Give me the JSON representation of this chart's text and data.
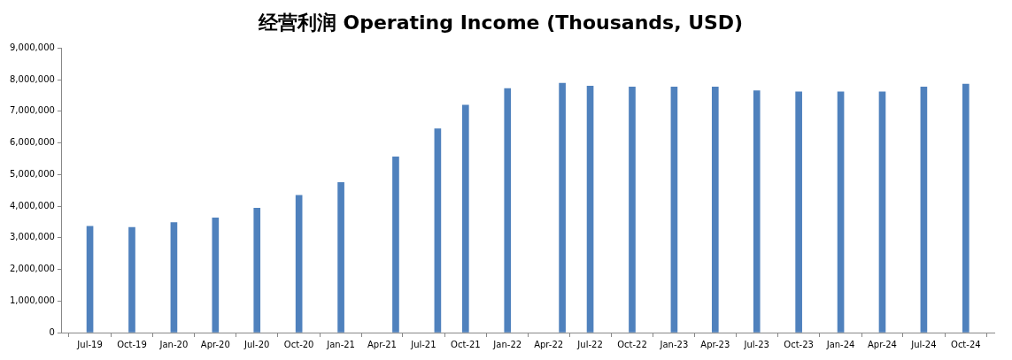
{
  "chart_data": {
    "type": "bar",
    "title": "经营利润 Operating Income (Thousands, USD)",
    "x": [
      "2019-07",
      "2019-10",
      "2020-01",
      "2020-04",
      "2020-07",
      "2020-10",
      "2021-01",
      "2021-05",
      "2021-08",
      "2021-10",
      "2022-01",
      "2022-05",
      "2022-07",
      "2022-10",
      "2023-01",
      "2023-04",
      "2023-07",
      "2023-10",
      "2024-01",
      "2024-04",
      "2024-07",
      "2024-10"
    ],
    "values": [
      3360000,
      3330000,
      3480000,
      3630000,
      3940000,
      4340000,
      4750000,
      5560000,
      6450000,
      7200000,
      7720000,
      7890000,
      7800000,
      7770000,
      7770000,
      7770000,
      7650000,
      7620000,
      7620000,
      7620000,
      7770000,
      7860000
    ],
    "color": "#4f81bd",
    "xlim": [
      "2019-06-16",
      "2024-10-17"
    ],
    "xticks": [
      {
        "value": "2019-07",
        "label": "Jul-19"
      },
      {
        "value": "2019-10",
        "label": "Oct-19"
      },
      {
        "value": "2020-01",
        "label": "Jan-20"
      },
      {
        "value": "2020-04",
        "label": "Apr-20"
      },
      {
        "value": "2020-07",
        "label": "Jul-20"
      },
      {
        "value": "2020-10",
        "label": "Oct-20"
      },
      {
        "value": "2021-01",
        "label": "Jan-21"
      },
      {
        "value": "2021-04",
        "label": "Apr-21"
      },
      {
        "value": "2021-07",
        "label": "Jul-21"
      },
      {
        "value": "2021-10",
        "label": "Oct-21"
      },
      {
        "value": "2022-01",
        "label": "Jan-22"
      },
      {
        "value": "2022-04",
        "label": "Apr-22"
      },
      {
        "value": "2022-07",
        "label": "Jul-22"
      },
      {
        "value": "2022-10",
        "label": "Oct-22"
      },
      {
        "value": "2023-01",
        "label": "Jan-23"
      },
      {
        "value": "2023-04",
        "label": "Apr-23"
      },
      {
        "value": "2023-07",
        "label": "Jul-23"
      },
      {
        "value": "2023-10",
        "label": "Oct-23"
      },
      {
        "value": "2024-01",
        "label": "Jan-24"
      },
      {
        "value": "2024-04",
        "label": "Apr-24"
      },
      {
        "value": "2024-07",
        "label": "Jul-24"
      },
      {
        "value": "2024-10",
        "label": "Oct-24"
      }
    ],
    "ylim": [
      0,
      9000000
    ],
    "yticks": [
      {
        "value": 0,
        "label": "0"
      },
      {
        "value": 1000000,
        "label": "1,000,000"
      },
      {
        "value": 2000000,
        "label": "2,000,000"
      },
      {
        "value": 3000000,
        "label": "3,000,000"
      },
      {
        "value": 4000000,
        "label": "4,000,000"
      },
      {
        "value": 5000000,
        "label": "5,000,000"
      },
      {
        "value": 6000000,
        "label": "6,000,000"
      },
      {
        "value": 7000000,
        "label": "7,000,000"
      },
      {
        "value": 8000000,
        "label": "8,000,000"
      },
      {
        "value": 9000000,
        "label": "9,000,000"
      }
    ],
    "grid": false,
    "legend": false
  }
}
